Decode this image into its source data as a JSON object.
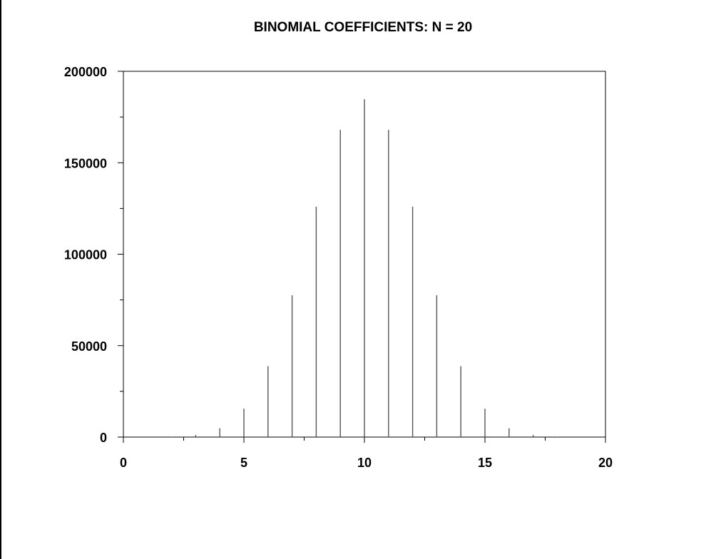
{
  "chart_data": {
    "type": "bar",
    "title": "BINOMIAL COEFFICIENTS: N = 20",
    "xlabel": "",
    "ylabel": "",
    "x": [
      0,
      1,
      2,
      3,
      4,
      5,
      6,
      7,
      8,
      9,
      10,
      11,
      12,
      13,
      14,
      15,
      16,
      17,
      18,
      19,
      20
    ],
    "values": [
      1,
      20,
      190,
      1140,
      4845,
      15504,
      38760,
      77520,
      125970,
      167960,
      184756,
      167960,
      125970,
      77520,
      38760,
      15504,
      4845,
      1140,
      190,
      20,
      1
    ],
    "xlim": [
      0,
      20
    ],
    "ylim": [
      0,
      200000
    ],
    "x_ticks_major": [
      0,
      5,
      10,
      15,
      20
    ],
    "x_tick_labels": [
      "0",
      "5",
      "10",
      "15",
      "20"
    ],
    "y_ticks_major": [
      0,
      50000,
      100000,
      150000,
      200000
    ],
    "y_tick_labels": [
      "0",
      "50000",
      "100000",
      "150000",
      "200000"
    ],
    "grid": false,
    "colors": {
      "axes": "#000000",
      "bars": "#555555"
    }
  }
}
